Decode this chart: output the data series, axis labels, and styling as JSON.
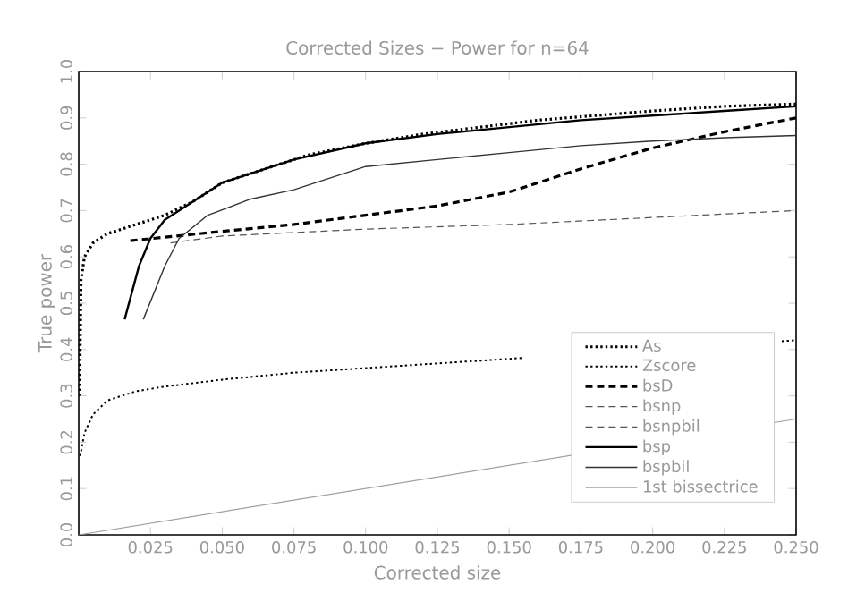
{
  "chart_data": {
    "type": "line",
    "title": "Corrected Sizes − Power for n=64",
    "xlabel": "Corrected size",
    "ylabel": "True power",
    "xlim": [
      0,
      0.25
    ],
    "ylim": [
      0,
      1.0
    ],
    "xticks": [
      {
        "value": 0.025,
        "label": "0.025"
      },
      {
        "value": 0.05,
        "label": "0.050"
      },
      {
        "value": 0.075,
        "label": "0.075"
      },
      {
        "value": 0.1,
        "label": "0.100"
      },
      {
        "value": 0.125,
        "label": "0.125"
      },
      {
        "value": 0.15,
        "label": "0.150"
      },
      {
        "value": 0.175,
        "label": "0.175"
      },
      {
        "value": 0.2,
        "label": "0.200"
      },
      {
        "value": 0.225,
        "label": "0.225"
      },
      {
        "value": 0.25,
        "label": "0.250"
      }
    ],
    "yticks": [
      {
        "value": 0,
        "label": "0.0"
      },
      0.1,
      0.2,
      0.3,
      0.4,
      0.5,
      0.6,
      0.7,
      0.8,
      0.9,
      {
        "value": 1.0,
        "label": "1.0"
      }
    ],
    "grid": false,
    "legend": "bottom right",
    "marker": "none",
    "series": [
      {
        "name": "As",
        "color": "#000000",
        "line_style": "dotted",
        "x": [
          0.0003,
          0.0008,
          0.002,
          0.005,
          0.01,
          0.02,
          0.03,
          0.04,
          0.05,
          0.065,
          0.08,
          0.1,
          0.12,
          0.14,
          0.16,
          0.18,
          0.2,
          0.225,
          0.25
        ],
        "values": [
          0.3,
          0.55,
          0.6,
          0.63,
          0.65,
          0.67,
          0.69,
          0.72,
          0.76,
          0.79,
          0.82,
          0.845,
          0.865,
          0.88,
          0.895,
          0.905,
          0.915,
          0.925,
          0.93
        ]
      },
      {
        "name": "Zscore",
        "color": "#000000",
        "line_style": "dotted",
        "x": [
          0.0005,
          0.002,
          0.005,
          0.01,
          0.02,
          0.03,
          0.05,
          0.075,
          0.1,
          0.125,
          0.15,
          0.155,
          0.175,
          0.2,
          0.225,
          0.245,
          0.25
        ],
        "values": [
          0.17,
          0.22,
          0.26,
          0.29,
          0.31,
          0.32,
          0.335,
          0.35,
          0.36,
          0.37,
          0.38,
          0.382,
          null,
          null,
          null,
          0.418,
          0.42
        ]
      },
      {
        "name": "bsD",
        "color": "#000000",
        "line_style": "dashed",
        "x": [
          0.018,
          0.05,
          0.075,
          0.1,
          0.125,
          0.15,
          0.175,
          0.2,
          0.225,
          0.25
        ],
        "values": [
          0.635,
          0.655,
          0.67,
          0.69,
          0.71,
          0.74,
          0.79,
          0.835,
          0.87,
          0.9
        ]
      },
      {
        "name": "bsnp",
        "color": "#555555",
        "line_style": "dashed",
        "x": [
          0.032,
          0.05,
          0.1,
          0.15,
          0.2,
          0.25
        ],
        "values": [
          0.63,
          0.645,
          0.66,
          0.67,
          0.685,
          0.7
        ]
      },
      {
        "name": "bsnpbil",
        "color": "#555555",
        "line_style": "dashed"
      },
      {
        "name": "bsp",
        "color": "#000000",
        "line_style": "solid",
        "x": [
          0.016,
          0.021,
          0.025,
          0.03,
          0.04,
          0.05,
          0.075,
          0.1,
          0.125,
          0.15,
          0.175,
          0.2,
          0.225,
          0.25
        ],
        "values": [
          0.465,
          0.58,
          0.64,
          0.68,
          0.72,
          0.76,
          0.81,
          0.845,
          0.865,
          0.88,
          0.895,
          0.905,
          0.915,
          0.925
        ]
      },
      {
        "name": "bspbil",
        "color": "#333333",
        "line_style": "solid",
        "x": [
          0.0225,
          0.03,
          0.035,
          0.045,
          0.06,
          0.075,
          0.1,
          0.125,
          0.15,
          0.175,
          0.2,
          0.225,
          0.25
        ],
        "values": [
          0.465,
          0.58,
          0.64,
          0.69,
          0.725,
          0.745,
          0.795,
          0.81,
          0.825,
          0.84,
          0.85,
          0.857,
          0.862
        ]
      },
      {
        "name": "1st bissectrice",
        "color": "#a0a0a0",
        "line_style": "solid",
        "x": [
          0,
          0.25
        ],
        "values": [
          0,
          0.25
        ]
      }
    ]
  }
}
